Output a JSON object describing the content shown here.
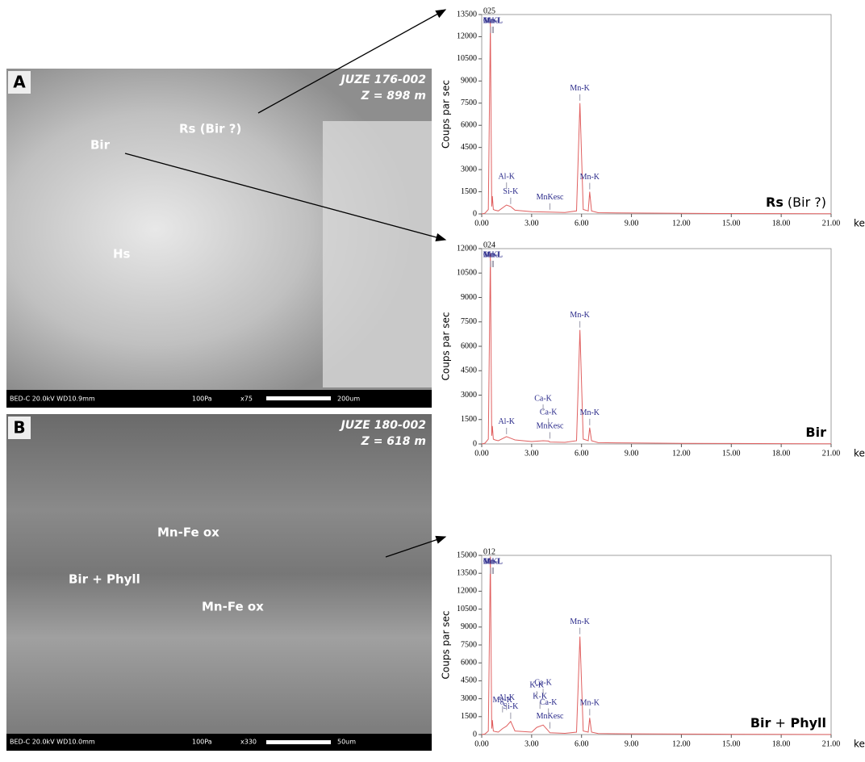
{
  "chart_data": [
    {
      "type": "line",
      "title": "025",
      "y_label": "Coups par sec",
      "x_unit": "kev",
      "sample_label": [
        {
          "text": "Rs",
          "bold": true
        },
        {
          "text": "(Bir ?)",
          "bold": false
        }
      ],
      "x": [
        0,
        0.2,
        0.4,
        0.52,
        0.6,
        0.64,
        0.7,
        0.8,
        1.0,
        1.49,
        1.74,
        2,
        3,
        4.1,
        5,
        5.7,
        5.9,
        6.1,
        6.4,
        6.49,
        6.6,
        7,
        9,
        12,
        15,
        18,
        21
      ],
      "series": [
        {
          "name": "025",
          "color": "#e06060",
          "values": [
            0,
            50,
            300,
            13000,
            500,
            1200,
            300,
            250,
            200,
            600,
            500,
            250,
            150,
            120,
            100,
            200,
            7500,
            300,
            200,
            1500,
            200,
            80,
            60,
            40,
            30,
            20,
            10
          ]
        }
      ],
      "peak_labels": [
        {
          "text": "O-K",
          "x": 0.52
        },
        {
          "text": "Mn-L",
          "x": 0.64
        },
        {
          "text": "Mn-L",
          "x": 0.7
        },
        {
          "text": "Si-K",
          "x": 1.74
        },
        {
          "text": "Al-K",
          "x": 1.49
        },
        {
          "text": "MnKesc",
          "x": 4.1
        },
        {
          "text": "Mn-K",
          "x": 5.9
        },
        {
          "text": "Mn-K",
          "x": 6.49
        }
      ],
      "xlim": [
        0,
        21
      ],
      "ylim": [
        0,
        13500
      ],
      "xticks": [
        {
          "value": 0,
          "label": "0.00"
        },
        {
          "value": 3,
          "label": "3.00"
        },
        {
          "value": 6,
          "label": "6.00"
        },
        {
          "value": 9,
          "label": "9.00"
        },
        {
          "value": 12,
          "label": "12.00"
        },
        {
          "value": 15,
          "label": "15.00"
        },
        {
          "value": 18,
          "label": "18.00"
        },
        {
          "value": 21,
          "label": "21.00"
        }
      ],
      "yticks": [
        0,
        1500,
        3000,
        4500,
        6000,
        7500,
        9000,
        10500,
        12000,
        13500
      ]
    },
    {
      "type": "line",
      "title": "024",
      "y_label": "Coups par sec",
      "x_unit": "kev",
      "sample_label": [
        {
          "text": "Bir",
          "bold": true
        }
      ],
      "x": [
        0,
        0.2,
        0.4,
        0.52,
        0.6,
        0.64,
        0.7,
        0.8,
        1.0,
        1.49,
        2,
        3,
        3.69,
        4.01,
        4.1,
        5,
        5.7,
        5.9,
        6.1,
        6.4,
        6.49,
        6.6,
        7,
        9,
        12,
        15,
        18,
        21
      ],
      "series": [
        {
          "name": "024",
          "color": "#e06060",
          "values": [
            0,
            50,
            300,
            11700,
            500,
            1100,
            300,
            250,
            200,
            450,
            250,
            150,
            200,
            180,
            120,
            100,
            200,
            7000,
            300,
            200,
            1000,
            200,
            80,
            60,
            40,
            30,
            20,
            10
          ]
        }
      ],
      "peak_labels": [
        {
          "text": "O-K",
          "x": 0.52
        },
        {
          "text": "Mn-L",
          "x": 0.64
        },
        {
          "text": "Mn-L",
          "x": 0.7
        },
        {
          "text": "Al-K",
          "x": 1.49
        },
        {
          "text": "MnKesc",
          "x": 4.1
        },
        {
          "text": "Ca-K",
          "x": 4.01
        },
        {
          "text": "Ca-K",
          "x": 3.69
        },
        {
          "text": "Mn-K",
          "x": 5.9
        },
        {
          "text": "Mn-K",
          "x": 6.49
        }
      ],
      "xlim": [
        0,
        21
      ],
      "ylim": [
        0,
        12000
      ],
      "xticks": [
        {
          "value": 0,
          "label": "0.00"
        },
        {
          "value": 3,
          "label": "3.00"
        },
        {
          "value": 6,
          "label": "6.00"
        },
        {
          "value": 9,
          "label": "9.00"
        },
        {
          "value": 12,
          "label": "12.00"
        },
        {
          "value": 15,
          "label": "15.00"
        },
        {
          "value": 18,
          "label": "18.00"
        },
        {
          "value": 21,
          "label": "21.00"
        }
      ],
      "yticks": [
        0,
        1500,
        3000,
        4500,
        6000,
        7500,
        9000,
        10500,
        12000
      ]
    },
    {
      "type": "line",
      "title": "012",
      "y_label": "Coups par sec",
      "x_unit": "kev",
      "sample_label": [
        {
          "text": "Bir",
          "bold": true
        },
        {
          "text": "+",
          "bold": false
        },
        {
          "text": "Phyll",
          "bold": true
        }
      ],
      "x": [
        0,
        0.2,
        0.4,
        0.52,
        0.6,
        0.64,
        0.7,
        0.8,
        1.0,
        1.25,
        1.49,
        1.74,
        2,
        3,
        3.31,
        3.69,
        4.01,
        4.1,
        5,
        5.7,
        5.9,
        6.1,
        6.4,
        6.49,
        6.6,
        7,
        9,
        12,
        15,
        18,
        21
      ],
      "series": [
        {
          "name": "012",
          "color": "#e06060",
          "values": [
            0,
            50,
            300,
            14900,
            500,
            1200,
            300,
            250,
            200,
            500,
            700,
            1100,
            300,
            200,
            600,
            800,
            300,
            150,
            100,
            200,
            8200,
            300,
            200,
            1400,
            200,
            80,
            60,
            40,
            30,
            20,
            10
          ]
        }
      ],
      "peak_labels": [
        {
          "text": "O-K",
          "x": 0.52
        },
        {
          "text": "Mn-L",
          "x": 0.64
        },
        {
          "text": "Mn-L",
          "x": 0.7
        },
        {
          "text": "Si-K",
          "x": 1.74
        },
        {
          "text": "Al-K",
          "x": 1.49
        },
        {
          "text": "Mg-K",
          "x": 1.25
        },
        {
          "text": "MnKesc",
          "x": 4.1
        },
        {
          "text": "Ca-K",
          "x": 4.01
        },
        {
          "text": "Ca-K",
          "x": 3.69
        },
        {
          "text": "K-K",
          "x": 3.5
        },
        {
          "text": "K-K",
          "x": 3.31
        },
        {
          "text": "Mn-K",
          "x": 5.9
        },
        {
          "text": "Mn-K",
          "x": 6.49
        }
      ],
      "xlim": [
        0,
        21
      ],
      "ylim": [
        0,
        15000
      ],
      "xticks": [
        {
          "value": 0,
          "label": "0.00"
        },
        {
          "value": 3,
          "label": "3.00"
        },
        {
          "value": 6,
          "label": "6.00"
        },
        {
          "value": 9,
          "label": "9.00"
        },
        {
          "value": 12,
          "label": "12.00"
        },
        {
          "value": 15,
          "label": "15.00"
        },
        {
          "value": 18,
          "label": "18.00"
        },
        {
          "value": 21,
          "label": "21.00"
        }
      ],
      "yticks": [
        0,
        1500,
        3000,
        4500,
        6000,
        7500,
        9000,
        10500,
        12000,
        13500,
        15000
      ]
    }
  ],
  "images": [
    {
      "panel": "A",
      "sample": "JUZE 176-002",
      "depth": "Z = 898 m",
      "labels": [
        "Rs (Bir ?)",
        "Bir",
        "Hs"
      ],
      "footer": [
        "BED-C  20.0kV  WD10.9mm",
        "100Pa",
        "x75",
        "200um"
      ]
    },
    {
      "panel": "B",
      "sample": "JUZE 180-002",
      "depth": "Z = 618 m",
      "labels": [
        "Mn-Fe ox",
        "Bir + Phyll",
        "Mn-Fe ox"
      ],
      "footer": [
        "BED-C  20.0kV  WD10.0mm",
        "100Pa",
        "x330",
        "50um"
      ]
    }
  ]
}
